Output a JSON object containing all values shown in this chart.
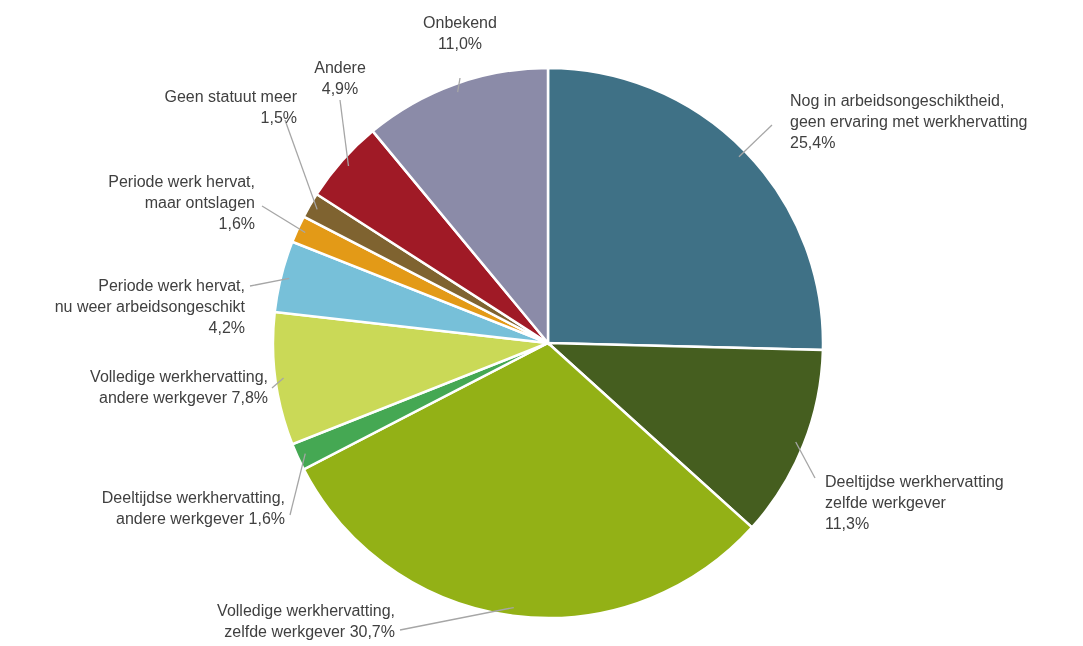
{
  "chart_data": {
    "type": "pie",
    "categories": [
      "Nog in arbeidsongeschiktheid,\ngeen ervaring met werkhervatting",
      "Deeltijdse werkhervatting\nzelfde werkgever",
      "Volledige werkhervatting,\nzelfde werkgever",
      "Deeltijdse werkhervatting,\nandere werkgever",
      "Volledige werkhervatting,\nandere werkgever",
      "Periode werk hervat,\nnu weer arbeidsongeschikt",
      "Periode werk hervat,\nmaar  ontslagen",
      "Geen statuut meer",
      "Andere",
      "Onbekend"
    ],
    "values": [
      25.4,
      11.3,
      30.7,
      1.6,
      7.8,
      4.2,
      1.6,
      1.5,
      4.9,
      11.0
    ],
    "value_labels": [
      "25,4%",
      "11,3%",
      "30,7%",
      "1,6%",
      "7,8%",
      "4,2%",
      "1,6%",
      "1,5%",
      "4,9%",
      "11,0%"
    ],
    "colors": [
      "#3f7186",
      "#455e1f",
      "#93b116",
      "#45a853",
      "#cad957",
      "#77c0d9",
      "#e39a17",
      "#7f6330",
      "#a01a26",
      "#8b8ba8"
    ]
  }
}
